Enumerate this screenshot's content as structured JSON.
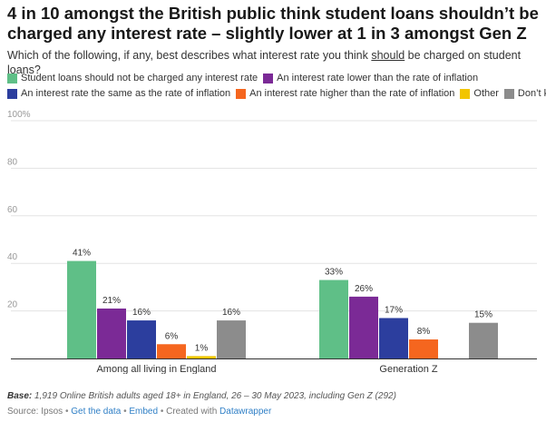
{
  "header": {
    "title": "4 in 10 amongst the British public think student loans shouldn’t be charged any interest rate – slightly lower at 1 in 3 amongst Gen Z",
    "subtitle_before": "Which of the following, if any, best describes what interest rate you think ",
    "subtitle_emphasis": "should",
    "subtitle_after": " be charged on student loans?"
  },
  "chart_data": {
    "type": "bar",
    "categories": [
      "Among all living in England",
      "Generation Z"
    ],
    "series": [
      {
        "name": "Student loans should not be charged any interest rate",
        "color": "#5fbf87",
        "values": [
          41,
          33
        ],
        "labels": [
          "41%",
          "33%"
        ]
      },
      {
        "name": "An interest rate lower than the rate of inflation",
        "color": "#7b2a96",
        "values": [
          21,
          26
        ],
        "labels": [
          "21%",
          "26%"
        ]
      },
      {
        "name": "An interest rate the same as the rate of inflation",
        "color": "#2c3e9e",
        "values": [
          16,
          17
        ],
        "labels": [
          "16%",
          "17%"
        ]
      },
      {
        "name": "An interest rate higher than the rate of inflation",
        "color": "#f5661f",
        "values": [
          6,
          8
        ],
        "labels": [
          "6%",
          "8%"
        ]
      },
      {
        "name": "Other",
        "color": "#f2c500",
        "values": [
          1,
          null
        ],
        "labels": [
          "1%",
          ""
        ]
      },
      {
        "name": "Don’t know",
        "color": "#8c8c8c",
        "values": [
          16,
          15
        ],
        "labels": [
          "16%",
          "15%"
        ]
      }
    ],
    "yticks": [
      {
        "value": 0,
        "label": ""
      },
      {
        "value": 20,
        "label": "20"
      },
      {
        "value": 40,
        "label": "40"
      },
      {
        "value": 60,
        "label": "60"
      },
      {
        "value": 80,
        "label": "80"
      },
      {
        "value": 100,
        "label": "100%"
      }
    ],
    "ylim": [
      0,
      100
    ],
    "grid": true,
    "legend_position": "top-left",
    "xlabel": "",
    "ylabel": ""
  },
  "footer": {
    "base_label": "Base:",
    "base_text": " 1,919 Online British adults aged 18+ in England, 26 – 30 May 2023, including Gen Z (292)",
    "source": "Source: Ipsos",
    "get_data": "Get the data",
    "embed": "Embed",
    "created": "Created with ",
    "tool": "Datawrapper",
    "separator": "•"
  }
}
